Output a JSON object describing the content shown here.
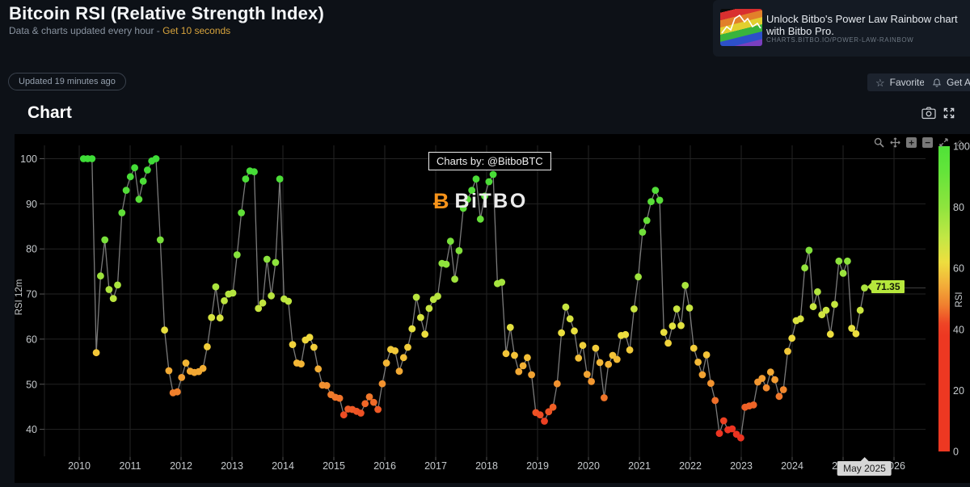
{
  "header": {
    "title": "Bitcoin RSI (Relative Strength Index)",
    "subtitle": "Data & charts updated every hour - ",
    "subtitle_link": "Get 10 seconds",
    "updated_badge": "Updated 19 minutes ago",
    "favorite_label": "Favorite",
    "alert_label": "Get Alert"
  },
  "promo": {
    "title": "Unlock Bitbo's Power Law Rainbow chart with Bitbo Pro.",
    "url": "CHARTS.BITBO.IO/POWER-LAW-RAINBOW"
  },
  "section": {
    "heading": "Chart"
  },
  "watermark": {
    "symbol": "Ƀ",
    "brand": "BiTBO"
  },
  "annotation": "Charts by: @BitboBTC",
  "hover": {
    "value_label": "71.35",
    "date_label": "May 2025"
  },
  "axes": {
    "y_title": "RSI 12m",
    "colorbar_title": "RSI",
    "x_ticks": [
      2010,
      2011,
      2012,
      2013,
      2014,
      2015,
      2016,
      2017,
      2018,
      2019,
      2020,
      2021,
      2022,
      2023,
      2024,
      2025,
      2026
    ],
    "y_ticks": [
      40,
      50,
      60,
      70,
      80,
      90,
      100
    ],
    "colorbar_ticks": [
      0,
      20,
      40,
      60,
      80,
      100
    ]
  },
  "colors": {
    "accent_link": "#d7a33c",
    "line": "#8f8f8f",
    "grid": "#232323",
    "tick_text": "#c6cacd",
    "value_label_bg": "#b6e73c",
    "date_tip_bg": "#d6d6d6",
    "spike": "#3f3f3f"
  },
  "chart_data": {
    "type": "scatter",
    "mode": "lines+markers",
    "series_name": "RSI 12m",
    "title": "",
    "xlabel": "",
    "ylabel": "RSI 12m",
    "x_start": "2010-02",
    "x_frequency": "monthly",
    "x_range": [
      2009.6,
      2026.6
    ],
    "ylim": [
      36,
      103
    ],
    "grid": true,
    "legend": false,
    "colorbar": {
      "title": "RSI",
      "range": [
        0,
        100
      ],
      "ticks": [
        0,
        20,
        40,
        60,
        80,
        100
      ]
    },
    "colorbar_gradient_top_to_bottom": [
      [
        0,
        "#4fe238"
      ],
      [
        0.08,
        "#63e43a"
      ],
      [
        0.2,
        "#8fe43e"
      ],
      [
        0.3,
        "#c2e745"
      ],
      [
        0.38,
        "#eede3f"
      ],
      [
        0.45,
        "#f2b13a"
      ],
      [
        0.52,
        "#f0802f"
      ],
      [
        0.58,
        "#ee4526"
      ],
      [
        0.62,
        "#ed3822"
      ],
      [
        1,
        "#ed3822"
      ]
    ],
    "marker_colorscale": [
      [
        40.5,
        "#ec3421"
      ],
      [
        43.5,
        "#ee5024"
      ],
      [
        47,
        "#f0752a"
      ],
      [
        51,
        "#f29b31"
      ],
      [
        56,
        "#f3c037"
      ],
      [
        61,
        "#eede3e"
      ],
      [
        66,
        "#cde540"
      ],
      [
        72,
        "#a8e43e"
      ],
      [
        78,
        "#88e23c"
      ],
      [
        88,
        "#60de38"
      ],
      [
        100,
        "#3edc37"
      ]
    ],
    "values": [
      100,
      100,
      100,
      57,
      74,
      82,
      71,
      69,
      72,
      88,
      93,
      96,
      98,
      91,
      95,
      97.5,
      99.5,
      100,
      82,
      62,
      53,
      48.1,
      48.3,
      51.5,
      54.7,
      52.9,
      52.6,
      52.8,
      53.5,
      58.3,
      64.8,
      71.6,
      64.7,
      68.5,
      70,
      70.2,
      78.7,
      88,
      95.5,
      97.3,
      97.1,
      66.8,
      68,
      77.7,
      69.6,
      77,
      95.5,
      68.9,
      68.4,
      58.8,
      54.7,
      54.5,
      59.8,
      60.4,
      58.2,
      53.4,
      49.8,
      49.7,
      47.7,
      47.1,
      46.9,
      43.2,
      44.5,
      44.4,
      44,
      43.6,
      45.7,
      47.2,
      46,
      44.4,
      50.1,
      54.7,
      57.7,
      57.4,
      52.9,
      55.9,
      58.2,
      62.3,
      69.3,
      64.8,
      61.1,
      66.8,
      68.8,
      69.5,
      76.8,
      76.6,
      81.7,
      73.3,
      79.6,
      89,
      91,
      93,
      95.5,
      86.6,
      91.7,
      94.9,
      96.5,
      72.3,
      72.6,
      56.8,
      62.6,
      56.4,
      52.8,
      54.1,
      55.9,
      52.1,
      43.7,
      43.2,
      41.8,
      43.9,
      44.9,
      50.1,
      61.4,
      67.1,
      64.5,
      61.8,
      55.8,
      58.6,
      52.2,
      50.6,
      58,
      54.8,
      47,
      54.4,
      56.4,
      55.5,
      60.8,
      61,
      57.6,
      66.7,
      73.8,
      83.7,
      86.3,
      90.5,
      93,
      90.8,
      61.5,
      59.1,
      62.9,
      66.7,
      63,
      71.9,
      66.9,
      58,
      54.9,
      52.1,
      56.5,
      50.2,
      46.4,
      39.1,
      41.9,
      39.9,
      40.1,
      38.9,
      38.1,
      44.9,
      45.2,
      45.4,
      50.5,
      51.3,
      49.2,
      52.7,
      51,
      47.3,
      48.8,
      57.3,
      60.2,
      64.1,
      64.5,
      75.8,
      79.7,
      67.2,
      70.5,
      65.4,
      66.4,
      61.1,
      67.7,
      77.3,
      74.6,
      77.3,
      62.4,
      61.2,
      66.4,
      71.35
    ],
    "last_point": {
      "date": "May 2025",
      "value": 71.35
    }
  }
}
